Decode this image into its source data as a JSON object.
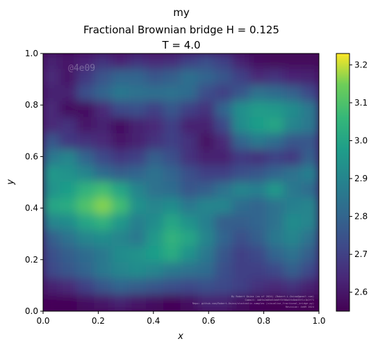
{
  "chart_data": {
    "type": "heatmap",
    "title_lines": [
      "my",
      "Fractional Brownian bridge H = 0.125",
      "T = 4.0"
    ],
    "xlabel": "x",
    "ylabel": "y",
    "xlim": [
      0.0,
      1.0
    ],
    "ylim": [
      0.0,
      1.0
    ],
    "x_ticks": [
      "0.0",
      "0.2",
      "0.4",
      "0.6",
      "0.8",
      "1.0"
    ],
    "y_ticks": [
      "0.0",
      "0.2",
      "0.4",
      "0.6",
      "0.8",
      "1.0"
    ],
    "colormap": "viridis",
    "colorbar_range": [
      2.55,
      3.23
    ],
    "colorbar_ticks": [
      "2.6",
      "2.7",
      "2.8",
      "2.9",
      "3.0",
      "3.1",
      "3.2"
    ],
    "watermark": "@4e09",
    "grid": false,
    "grid_rows_top_to_bottom": [
      [
        2.62,
        2.6,
        2.63,
        2.66,
        2.63,
        2.66,
        2.64,
        2.65,
        2.7,
        2.73,
        2.7,
        2.62,
        2.58,
        2.57,
        2.57,
        2.57
      ],
      [
        2.64,
        2.6,
        2.68,
        2.75,
        2.8,
        2.8,
        2.76,
        2.78,
        2.83,
        2.8,
        2.76,
        2.7,
        2.64,
        2.66,
        2.63,
        2.62
      ],
      [
        2.62,
        2.62,
        2.74,
        2.8,
        2.86,
        2.84,
        2.83,
        2.84,
        2.82,
        2.73,
        2.7,
        2.76,
        2.84,
        2.82,
        2.79,
        2.72
      ],
      [
        2.64,
        2.58,
        2.58,
        2.64,
        2.72,
        2.74,
        2.7,
        2.76,
        2.7,
        2.66,
        2.8,
        2.93,
        2.97,
        2.96,
        2.92,
        2.86
      ],
      [
        2.64,
        2.66,
        2.6,
        2.62,
        2.58,
        2.62,
        2.64,
        2.7,
        2.62,
        2.62,
        2.72,
        2.92,
        2.98,
        3.0,
        2.9,
        2.86
      ],
      [
        2.76,
        2.68,
        2.66,
        2.64,
        2.6,
        2.62,
        2.66,
        2.7,
        2.66,
        2.59,
        2.64,
        2.8,
        2.86,
        2.82,
        2.76,
        2.76
      ],
      [
        2.86,
        2.9,
        2.8,
        2.72,
        2.68,
        2.7,
        2.78,
        2.74,
        2.66,
        2.62,
        2.62,
        2.68,
        2.66,
        2.7,
        2.68,
        2.78
      ],
      [
        2.96,
        2.94,
        2.9,
        2.82,
        2.78,
        2.8,
        2.84,
        2.8,
        2.74,
        2.7,
        2.7,
        2.74,
        2.76,
        2.8,
        2.84,
        2.88
      ],
      [
        2.94,
        2.98,
        3.04,
        3.08,
        3.0,
        2.9,
        2.84,
        2.82,
        2.76,
        2.78,
        2.84,
        2.9,
        2.88,
        2.96,
        2.86,
        2.82
      ],
      [
        3.0,
        3.02,
        3.1,
        3.16,
        3.08,
        2.94,
        2.9,
        2.92,
        2.86,
        2.9,
        2.9,
        2.82,
        2.8,
        2.84,
        2.88,
        2.9
      ],
      [
        2.9,
        2.92,
        3.0,
        3.04,
        2.96,
        2.88,
        2.92,
        3.0,
        2.94,
        2.88,
        2.78,
        2.78,
        2.8,
        2.84,
        2.92,
        2.9
      ],
      [
        2.78,
        2.84,
        2.9,
        2.92,
        2.9,
        2.86,
        2.96,
        3.04,
        3.0,
        2.9,
        2.8,
        2.74,
        2.78,
        2.86,
        2.9,
        2.84
      ],
      [
        2.74,
        2.78,
        2.82,
        2.86,
        2.92,
        2.94,
        2.98,
        3.02,
        2.94,
        2.86,
        2.76,
        2.7,
        2.72,
        2.8,
        2.84,
        2.78
      ],
      [
        2.72,
        2.76,
        2.8,
        2.86,
        2.9,
        2.92,
        2.9,
        2.86,
        2.84,
        2.82,
        2.74,
        2.7,
        2.7,
        2.72,
        2.78,
        2.72
      ],
      [
        2.62,
        2.64,
        2.7,
        2.76,
        2.8,
        2.78,
        2.76,
        2.74,
        2.72,
        2.74,
        2.72,
        2.7,
        2.66,
        2.64,
        2.66,
        2.62
      ],
      [
        2.56,
        2.56,
        2.58,
        2.6,
        2.62,
        2.6,
        2.58,
        2.56,
        2.58,
        2.62,
        2.62,
        2.58,
        2.56,
        2.55,
        2.56,
        2.55
      ]
    ],
    "credit_lines": [
      "By Robert Osina (as of 2024) (Robert.L.Osina@gmail.com)",
      "Commit: 4d0fa2b85d54eb9f3f00a5fe8eb55f1c1b2f71",
      "Repo: github.com/Robert-Osina/stochastic-samples (visualise_fractional_bridge.py)",
      "Revision: 4e09 2024"
    ]
  }
}
